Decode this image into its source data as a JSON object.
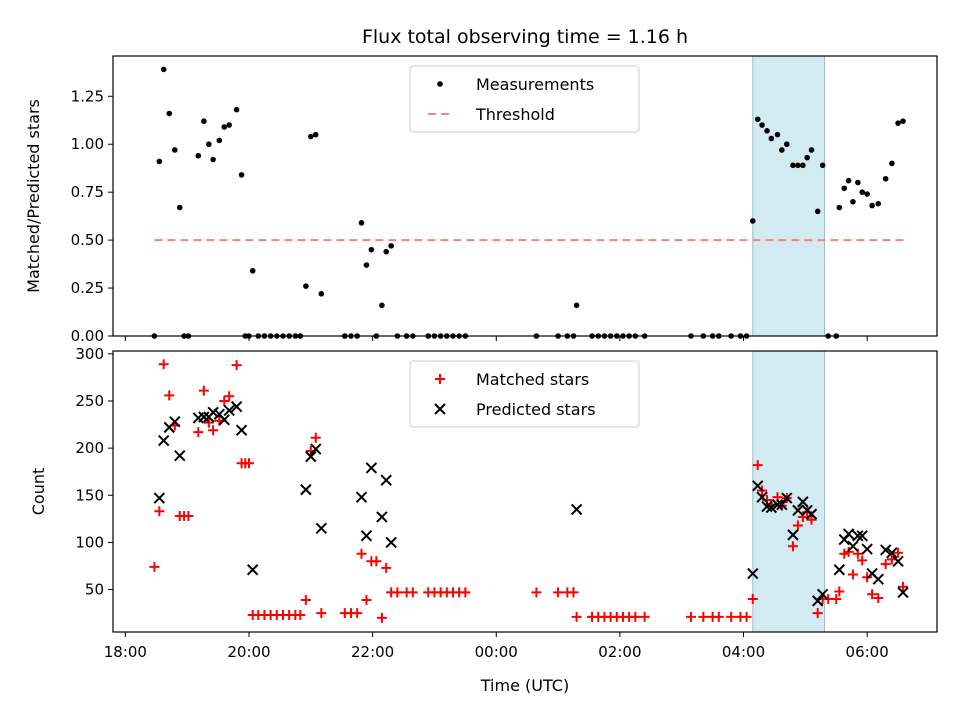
{
  "figure": {
    "title": "Flux total observing time = 1.16 h",
    "xlabel": "Time (UTC)",
    "x_tick_labels": [
      "18:00",
      "20:00",
      "22:00",
      "00:00",
      "02:00",
      "04:00",
      "06:00"
    ]
  },
  "chart_data": [
    {
      "type": "scatter",
      "ylabel": "Matched/Predicted stars",
      "xlim": [
        17.8,
        31.13
      ],
      "ylim": [
        0,
        1.46
      ],
      "y_tick_labels": [
        "0.00",
        "0.25",
        "0.50",
        "0.75",
        "1.00",
        "1.25"
      ],
      "y_ticks": [
        0,
        0.25,
        0.5,
        0.75,
        1.0,
        1.25
      ],
      "x_ticks": [
        18,
        20,
        22,
        24,
        26,
        28,
        30
      ],
      "legend_position": "top-center",
      "colors": {
        "measurements": "#000000",
        "threshold": "#ff7f7f",
        "highlight": "#add8e6"
      },
      "highlight_span": [
        28.15,
        29.31
      ],
      "threshold": {
        "name": "Threshold",
        "value": 0.5,
        "x": [
          18.47,
          30.6
        ]
      },
      "series": [
        {
          "name": "Measurements",
          "marker": "dot",
          "points": [
            [
              18.47,
              0.0
            ],
            [
              18.55,
              0.91
            ],
            [
              18.62,
              1.39
            ],
            [
              18.71,
              1.16
            ],
            [
              18.8,
              0.97
            ],
            [
              18.88,
              0.67
            ],
            [
              18.95,
              0.0
            ],
            [
              19.02,
              0.0
            ],
            [
              19.18,
              0.94
            ],
            [
              19.27,
              1.12
            ],
            [
              19.35,
              1.0
            ],
            [
              19.42,
              0.92
            ],
            [
              19.52,
              1.02
            ],
            [
              19.6,
              1.09
            ],
            [
              19.68,
              1.1
            ],
            [
              19.8,
              1.18
            ],
            [
              19.88,
              0.84
            ],
            [
              19.94,
              0.0
            ],
            [
              20.0,
              0.0
            ],
            [
              20.06,
              0.34
            ],
            [
              20.15,
              0.0
            ],
            [
              20.25,
              0.0
            ],
            [
              20.35,
              0.0
            ],
            [
              20.45,
              0.0
            ],
            [
              20.55,
              0.0
            ],
            [
              20.65,
              0.0
            ],
            [
              20.75,
              0.0
            ],
            [
              20.83,
              0.0
            ],
            [
              20.92,
              0.26
            ],
            [
              21.0,
              1.04
            ],
            [
              21.08,
              1.05
            ],
            [
              21.17,
              0.22
            ],
            [
              21.55,
              0.0
            ],
            [
              21.65,
              0.0
            ],
            [
              21.75,
              0.0
            ],
            [
              21.82,
              0.59
            ],
            [
              21.9,
              0.37
            ],
            [
              21.98,
              0.45
            ],
            [
              22.06,
              0.0
            ],
            [
              22.15,
              0.16
            ],
            [
              22.22,
              0.44
            ],
            [
              22.3,
              0.47
            ],
            [
              22.4,
              0.0
            ],
            [
              22.55,
              0.0
            ],
            [
              22.65,
              0.0
            ],
            [
              22.9,
              0.0
            ],
            [
              23.0,
              0.0
            ],
            [
              23.1,
              0.0
            ],
            [
              23.2,
              0.0
            ],
            [
              23.3,
              0.0
            ],
            [
              23.4,
              0.0
            ],
            [
              23.5,
              0.0
            ],
            [
              24.65,
              0.0
            ],
            [
              25.0,
              0.0
            ],
            [
              25.15,
              0.0
            ],
            [
              25.25,
              0.0
            ],
            [
              25.3,
              0.16
            ],
            [
              25.55,
              0.0
            ],
            [
              25.65,
              0.0
            ],
            [
              25.75,
              0.0
            ],
            [
              25.85,
              0.0
            ],
            [
              25.95,
              0.0
            ],
            [
              26.05,
              0.0
            ],
            [
              26.15,
              0.0
            ],
            [
              26.25,
              0.0
            ],
            [
              26.4,
              0.0
            ],
            [
              27.15,
              0.0
            ],
            [
              27.35,
              0.0
            ],
            [
              27.5,
              0.0
            ],
            [
              27.6,
              0.0
            ],
            [
              27.8,
              0.0
            ],
            [
              27.95,
              0.0
            ],
            [
              28.05,
              0.0
            ],
            [
              28.15,
              0.6
            ],
            [
              28.23,
              1.13
            ],
            [
              28.3,
              1.1
            ],
            [
              28.38,
              1.07
            ],
            [
              28.45,
              1.03
            ],
            [
              28.55,
              1.05
            ],
            [
              28.62,
              0.97
            ],
            [
              28.7,
              1.0
            ],
            [
              28.8,
              0.89
            ],
            [
              28.88,
              0.89
            ],
            [
              28.96,
              0.89
            ],
            [
              29.03,
              0.93
            ],
            [
              29.1,
              0.97
            ],
            [
              29.2,
              0.65
            ],
            [
              29.28,
              0.89
            ],
            [
              29.37,
              0.0
            ],
            [
              29.5,
              0.0
            ],
            [
              29.55,
              0.67
            ],
            [
              29.63,
              0.77
            ],
            [
              29.7,
              0.81
            ],
            [
              29.77,
              0.7
            ],
            [
              29.85,
              0.8
            ],
            [
              29.92,
              0.75
            ],
            [
              30.0,
              0.74
            ],
            [
              30.08,
              0.68
            ],
            [
              30.18,
              0.69
            ],
            [
              30.3,
              0.82
            ],
            [
              30.4,
              0.9
            ],
            [
              30.5,
              1.11
            ],
            [
              30.58,
              1.12
            ]
          ]
        }
      ]
    },
    {
      "type": "scatter",
      "ylabel": "Count",
      "xlim": [
        17.8,
        31.13
      ],
      "ylim": [
        5,
        303
      ],
      "y_tick_labels": [
        "50",
        "100",
        "150",
        "200",
        "250",
        "300"
      ],
      "y_ticks": [
        50,
        100,
        150,
        200,
        250,
        300
      ],
      "x_ticks": [
        18,
        20,
        22,
        24,
        26,
        28,
        30
      ],
      "legend_position": "top-center",
      "colors": {
        "matched": "#ff0000",
        "predicted": "#000000",
        "highlight": "#add8e6"
      },
      "highlight_span": [
        28.15,
        29.31
      ],
      "series": [
        {
          "name": "Matched stars",
          "marker": "plus",
          "points": [
            [
              18.47,
              74
            ],
            [
              18.55,
              133
            ],
            [
              18.62,
              289
            ],
            [
              18.71,
              256
            ],
            [
              18.8,
              224
            ],
            [
              18.88,
              128
            ],
            [
              18.95,
              128
            ],
            [
              19.02,
              128
            ],
            [
              19.18,
              217
            ],
            [
              19.27,
              261
            ],
            [
              19.35,
              227
            ],
            [
              19.42,
              219
            ],
            [
              19.52,
              229
            ],
            [
              19.6,
              250
            ],
            [
              19.68,
              255
            ],
            [
              19.8,
              288
            ],
            [
              19.88,
              184
            ],
            [
              19.94,
              184
            ],
            [
              20.0,
              184
            ],
            [
              20.06,
              23
            ],
            [
              20.15,
              23
            ],
            [
              20.25,
              23
            ],
            [
              20.35,
              23
            ],
            [
              20.45,
              23
            ],
            [
              20.55,
              23
            ],
            [
              20.65,
              23
            ],
            [
              20.75,
              23
            ],
            [
              20.83,
              23
            ],
            [
              20.92,
              39
            ],
            [
              21.0,
              197
            ],
            [
              21.08,
              211
            ],
            [
              21.17,
              25
            ],
            [
              21.55,
              25
            ],
            [
              21.65,
              25
            ],
            [
              21.75,
              25
            ],
            [
              21.82,
              88
            ],
            [
              21.9,
              39
            ],
            [
              21.98,
              80
            ],
            [
              22.06,
              80
            ],
            [
              22.15,
              20
            ],
            [
              22.22,
              73
            ],
            [
              22.3,
              47
            ],
            [
              22.4,
              47
            ],
            [
              22.55,
              47
            ],
            [
              22.65,
              47
            ],
            [
              22.9,
              47
            ],
            [
              23.0,
              47
            ],
            [
              23.1,
              47
            ],
            [
              23.2,
              47
            ],
            [
              23.3,
              47
            ],
            [
              23.4,
              47
            ],
            [
              23.5,
              47
            ],
            [
              24.65,
              47
            ],
            [
              25.0,
              47
            ],
            [
              25.15,
              47
            ],
            [
              25.25,
              47
            ],
            [
              25.3,
              21
            ],
            [
              25.55,
              21
            ],
            [
              25.65,
              21
            ],
            [
              25.75,
              21
            ],
            [
              25.85,
              21
            ],
            [
              25.95,
              21
            ],
            [
              26.05,
              21
            ],
            [
              26.15,
              21
            ],
            [
              26.25,
              21
            ],
            [
              26.4,
              21
            ],
            [
              27.15,
              21
            ],
            [
              27.35,
              21
            ],
            [
              27.5,
              21
            ],
            [
              27.6,
              21
            ],
            [
              27.8,
              21
            ],
            [
              27.95,
              21
            ],
            [
              28.05,
              21
            ],
            [
              28.15,
              40
            ],
            [
              28.23,
              182
            ],
            [
              28.3,
              155
            ],
            [
              28.38,
              145
            ],
            [
              28.45,
              140
            ],
            [
              28.55,
              148
            ],
            [
              28.62,
              139
            ],
            [
              28.7,
              147
            ],
            [
              28.8,
              96
            ],
            [
              28.88,
              118
            ],
            [
              28.96,
              127
            ],
            [
              29.03,
              132
            ],
            [
              29.1,
              124
            ],
            [
              29.2,
              25
            ],
            [
              29.28,
              40
            ],
            [
              29.37,
              40
            ],
            [
              29.5,
              40
            ],
            [
              29.55,
              48
            ],
            [
              29.63,
              88
            ],
            [
              29.7,
              90
            ],
            [
              29.77,
              66
            ],
            [
              29.85,
              88
            ],
            [
              29.92,
              81
            ],
            [
              30.0,
              63
            ],
            [
              30.08,
              45
            ],
            [
              30.18,
              41
            ],
            [
              30.3,
              77
            ],
            [
              30.4,
              82
            ],
            [
              30.5,
              89
            ],
            [
              30.58,
              53
            ]
          ]
        },
        {
          "name": "Predicted stars",
          "marker": "cross",
          "points": [
            [
              18.55,
              147
            ],
            [
              18.62,
              208
            ],
            [
              18.71,
              222
            ],
            [
              18.8,
              228
            ],
            [
              18.88,
              192
            ],
            [
              19.18,
              232
            ],
            [
              19.27,
              233
            ],
            [
              19.35,
              233
            ],
            [
              19.42,
              238
            ],
            [
              19.52,
              236
            ],
            [
              19.6,
              230
            ],
            [
              19.68,
              240
            ],
            [
              19.8,
              244
            ],
            [
              19.88,
              219
            ],
            [
              20.06,
              71
            ],
            [
              20.92,
              156
            ],
            [
              21.0,
              191
            ],
            [
              21.08,
              199
            ],
            [
              21.17,
              115
            ],
            [
              21.82,
              148
            ],
            [
              21.9,
              107
            ],
            [
              21.98,
              179
            ],
            [
              22.15,
              127
            ],
            [
              22.22,
              166
            ],
            [
              22.3,
              100
            ],
            [
              25.3,
              135
            ],
            [
              28.15,
              67
            ],
            [
              28.23,
              160
            ],
            [
              28.3,
              148
            ],
            [
              28.38,
              138
            ],
            [
              28.45,
              137
            ],
            [
              28.55,
              140
            ],
            [
              28.62,
              140
            ],
            [
              28.7,
              147
            ],
            [
              28.8,
              108
            ],
            [
              28.88,
              134
            ],
            [
              28.96,
              143
            ],
            [
              29.03,
              134
            ],
            [
              29.1,
              130
            ],
            [
              29.2,
              38
            ],
            [
              29.28,
              45
            ],
            [
              29.55,
              71
            ],
            [
              29.63,
              103
            ],
            [
              29.7,
              109
            ],
            [
              29.77,
              96
            ],
            [
              29.85,
              107
            ],
            [
              29.92,
              107
            ],
            [
              30.0,
              93
            ],
            [
              30.08,
              67
            ],
            [
              30.18,
              61
            ],
            [
              30.3,
              92
            ],
            [
              30.4,
              89
            ],
            [
              30.5,
              80
            ],
            [
              30.58,
              47
            ]
          ]
        }
      ]
    }
  ]
}
